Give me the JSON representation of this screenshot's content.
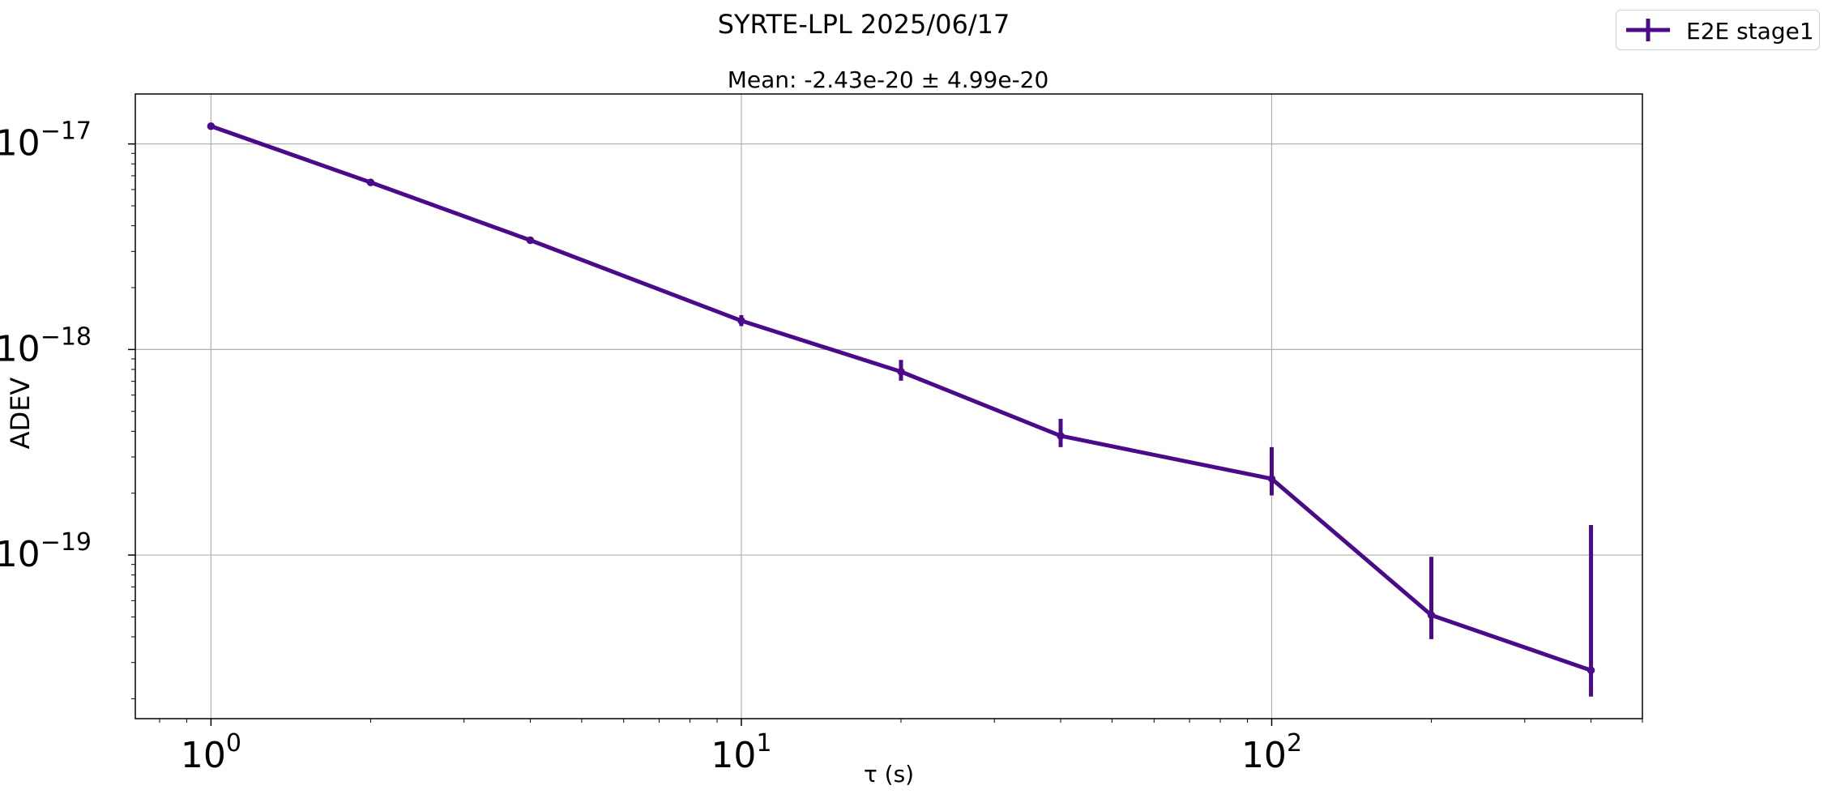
{
  "chart_data": {
    "type": "line",
    "title": "SYRTE-LPL 2025/06/17",
    "subtitle": "Mean: -2.43e-20 ± 4.99e-20",
    "xlabel": "τ (s)",
    "ylabel": "ADEV",
    "xscale": "log",
    "yscale": "log",
    "xlim": [
      0.72,
      500
    ],
    "ylim": [
      1.6e-20,
      1.75e-17
    ],
    "grid": true,
    "legend_position": "top-right (outside axes)",
    "x_ticks": [
      {
        "base": "10",
        "exp": "0",
        "value": 1
      },
      {
        "base": "10",
        "exp": "1",
        "value": 10
      },
      {
        "base": "10",
        "exp": "2",
        "value": 100
      }
    ],
    "y_ticks": [
      {
        "base": "10",
        "exp": "−17",
        "value": 1e-17
      },
      {
        "base": "10",
        "exp": "−18",
        "value": 1e-18
      },
      {
        "base": "10",
        "exp": "−19",
        "value": 1e-19
      }
    ],
    "series": [
      {
        "name": "E2E stage1",
        "color": "#4b0a8a",
        "x": [
          1,
          2,
          4,
          10,
          20,
          40,
          100,
          200,
          400
        ],
        "y": [
          1.22e-17,
          6.5e-18,
          3.4e-18,
          1.38e-18,
          7.8e-19,
          3.8e-19,
          2.35e-19,
          5.1e-20,
          2.75e-20
        ],
        "yerr_low": [
          1.2e-17,
          6.4e-18,
          3.32e-18,
          1.3e-18,
          7.05e-19,
          3.35e-19,
          1.95e-19,
          3.9e-20,
          2.05e-20
        ],
        "yerr_high": [
          1.24e-17,
          6.6e-18,
          3.48e-18,
          1.47e-18,
          8.9e-19,
          4.6e-19,
          3.35e-19,
          9.8e-20,
          1.4e-19
        ]
      }
    ]
  }
}
